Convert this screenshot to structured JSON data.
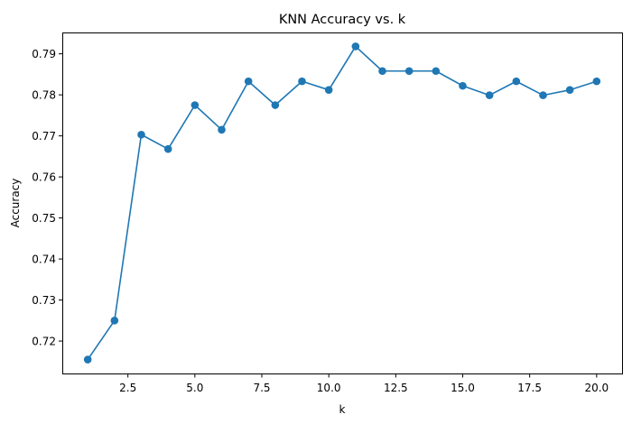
{
  "chart_data": {
    "type": "line",
    "title": "KNN Accuracy vs. k",
    "xlabel": "k",
    "ylabel": "Accuracy",
    "xlim": [
      0.05,
      20.95
    ],
    "ylim": [
      0.7121,
      0.7952
    ],
    "xticks": [
      2.5,
      5.0,
      7.5,
      10.0,
      12.5,
      15.0,
      17.5,
      20.0
    ],
    "xtick_labels": [
      "2.5",
      "5.0",
      "7.5",
      "10.0",
      "12.5",
      "15.0",
      "17.5",
      "20.0"
    ],
    "yticks": [
      0.72,
      0.73,
      0.74,
      0.75,
      0.76,
      0.77,
      0.78,
      0.79
    ],
    "ytick_labels": [
      "0.72",
      "0.73",
      "0.74",
      "0.75",
      "0.76",
      "0.77",
      "0.78",
      "0.79"
    ],
    "grid": false,
    "marker": "circle",
    "color": "#1f77b4",
    "series": [
      {
        "x": [
          1,
          2,
          3,
          4,
          5,
          6,
          7,
          8,
          9,
          10,
          11,
          12,
          13,
          14,
          15,
          16,
          17,
          18,
          19,
          20
        ],
        "values": [
          0.7155,
          0.725,
          0.7703,
          0.7668,
          0.7775,
          0.7715,
          0.7833,
          0.7775,
          0.7833,
          0.7812,
          0.7918,
          0.7858,
          0.7858,
          0.7858,
          0.7822,
          0.7799,
          0.7833,
          0.7799,
          0.7812,
          0.7833
        ]
      }
    ]
  }
}
